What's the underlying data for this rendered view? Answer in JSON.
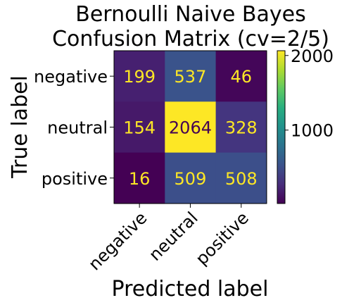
{
  "chart_data": {
    "type": "heatmap",
    "title_lines": [
      "Bernoulli Naive Bayes",
      "Confusion Matrix (cv=2/5)"
    ],
    "xlabel": "Predicted label",
    "ylabel": "True label",
    "x_categories": [
      "negative",
      "neutral",
      "positive"
    ],
    "y_categories": [
      "negative",
      "neutral",
      "positive"
    ],
    "values": [
      [
        199,
        537,
        46
      ],
      [
        154,
        2064,
        328
      ],
      [
        16,
        509,
        508
      ]
    ],
    "colormap": "viridis",
    "colorbar_ticks": [
      1000,
      2000
    ],
    "colorbar_range": [
      16,
      2064
    ],
    "text_color_dark_cell": "#fde725",
    "text_color_light_cell": "#440154"
  }
}
